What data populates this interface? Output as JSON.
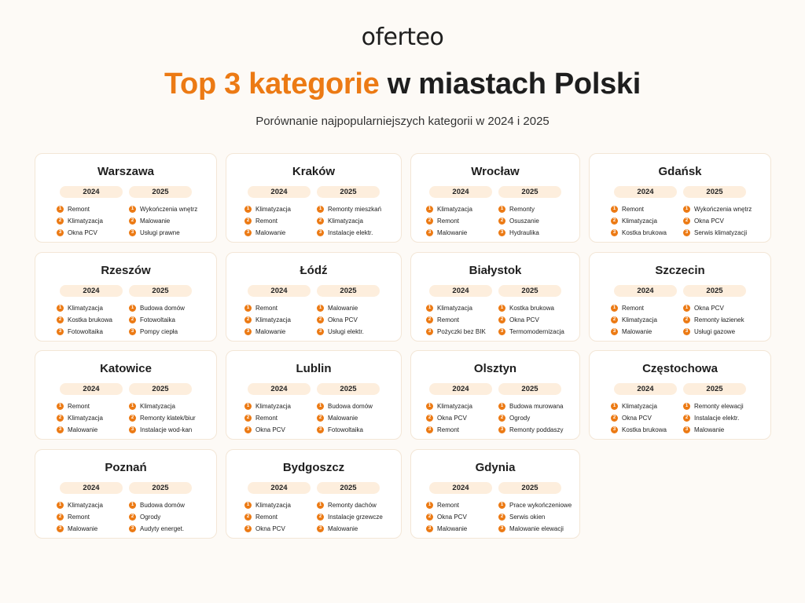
{
  "logo": {
    "p1": "oferte",
    "p2": "o"
  },
  "header": {
    "title_highlight": "Top 3 kategorie",
    "title_rest": " w miastach Polski",
    "subtitle": "Porównanie najpopularniejszych kategorii w 2024 i 2025"
  },
  "year_a": "2024",
  "year_b": "2025",
  "cities": [
    {
      "name": "Warszawa",
      "y2024": [
        "Remont",
        "Klimatyzacja",
        "Okna PCV"
      ],
      "y2025": [
        "Wykończenia wnętrz",
        "Malowanie",
        "Usługi prawne"
      ]
    },
    {
      "name": "Kraków",
      "y2024": [
        "Klimatyzacja",
        "Remont",
        "Malowanie"
      ],
      "y2025": [
        "Remonty mieszkań",
        "Klimatyzacja",
        "Instalacje elektr."
      ]
    },
    {
      "name": "Wrocław",
      "y2024": [
        "Klimatyzacja",
        "Remont",
        "Malowanie"
      ],
      "y2025": [
        "Remonty",
        "Osuszanie",
        "Hydraulika"
      ]
    },
    {
      "name": "Gdańsk",
      "y2024": [
        "Remont",
        "Klimatyzacja",
        "Kostka brukowa"
      ],
      "y2025": [
        "Wykończenia wnętrz",
        "Okna PCV",
        "Serwis klimatyzacji"
      ]
    },
    {
      "name": "Rzeszów",
      "y2024": [
        "Klimatyzacja",
        "Kostka brukowa",
        "Fotowoltaika"
      ],
      "y2025": [
        "Budowa domów",
        "Fotowoltaika",
        "Pompy ciepła"
      ]
    },
    {
      "name": "Łódź",
      "y2024": [
        "Remont",
        "Klimatyzacja",
        "Malowanie"
      ],
      "y2025": [
        "Malowanie",
        "Okna PCV",
        "Usługi elektr."
      ]
    },
    {
      "name": "Białystok",
      "y2024": [
        "Klimatyzacja",
        "Remont",
        "Pożyczki bez BIK"
      ],
      "y2025": [
        "Kostka brukowa",
        "Okna PCV",
        "Termomodernizacja"
      ]
    },
    {
      "name": "Szczecin",
      "y2024": [
        "Remont",
        "Klimatyzacja",
        "Malowanie"
      ],
      "y2025": [
        "Okna PCV",
        "Remonty łazienek",
        "Usługi gazowe"
      ]
    },
    {
      "name": "Katowice",
      "y2024": [
        "Remont",
        "Klimatyzacja",
        "Malowanie"
      ],
      "y2025": [
        "Klimatyzacja",
        "Remonty klatek/biur",
        "Instalacje wod-kan"
      ]
    },
    {
      "name": "Lublin",
      "y2024": [
        "Klimatyzacja",
        "Remont",
        "Okna PCV"
      ],
      "y2025": [
        "Budowa domów",
        "Malowanie",
        "Fotowoltaika"
      ]
    },
    {
      "name": "Olsztyn",
      "y2024": [
        "Klimatyzacja",
        "Okna PCV",
        "Remont"
      ],
      "y2025": [
        "Budowa murowana",
        "Ogrody",
        "Remonty poddaszy"
      ]
    },
    {
      "name": "Częstochowa",
      "y2024": [
        "Klimatyzacja",
        "Okna PCV",
        "Kostka brukowa"
      ],
      "y2025": [
        "Remonty elewacji",
        "Instalacje elektr.",
        "Malowanie"
      ]
    },
    {
      "name": "Poznań",
      "y2024": [
        "Klimatyzacja",
        "Remont",
        "Malowanie"
      ],
      "y2025": [
        "Budowa domów",
        "Ogrody",
        "Audyty energet."
      ]
    },
    {
      "name": "Bydgoszcz",
      "y2024": [
        "Klimatyzacja",
        "Remont",
        "Okna PCV"
      ],
      "y2025": [
        "Remonty dachów",
        "Instalacje grzewcze",
        "Malowanie"
      ]
    },
    {
      "name": "Gdynia",
      "y2024": [
        "Remont",
        "Okna PCV",
        "Malowanie"
      ],
      "y2025": [
        "Prace wykończeniowe",
        "Serwis okien",
        "Malowanie elewacji"
      ]
    }
  ],
  "colors": {
    "accent": "#ec7a14",
    "accent_light": "#fdeedd",
    "logo_blue": "#2f6de0",
    "background": "#fdfaf6"
  }
}
